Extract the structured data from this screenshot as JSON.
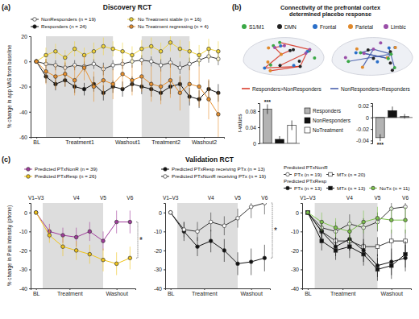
{
  "figure": {
    "panel_labels": [
      "(a)",
      "(b)",
      "(c)"
    ],
    "validation_title": "Validation RCT",
    "brain_title": "Connectivity of the prefrontal cortex determined placebo response",
    "regions": [
      {
        "label": "S1/M1",
        "color": "#3aa845"
      },
      {
        "label": "DMN",
        "color": "#222222"
      },
      {
        "label": "Frontal",
        "color": "#2a6fc9"
      },
      {
        "label": "Parietal",
        "color": "#e0892b"
      },
      {
        "label": "Limbic",
        "color": "#9a4fa8"
      }
    ],
    "contrasts": [
      {
        "label": "Responders>NonResponders",
        "color": "#d7301f"
      },
      {
        "label": "NonResponders>Responders",
        "color": "#3f57a8"
      }
    ]
  },
  "chart_data": [
    {
      "type": "line",
      "title": "Discovery RCT",
      "y_label": "% change in app VAS from baseline",
      "x": [
        0,
        1,
        2,
        3,
        4,
        5,
        6,
        7,
        8,
        9,
        10,
        11,
        12,
        13,
        14,
        15,
        16,
        17,
        18,
        19
      ],
      "xlim": [
        -0.6,
        19.6
      ],
      "xticks": [
        {
          "value": 0,
          "label": "BL"
        },
        {
          "value": 4.5,
          "label": "Treatment1"
        },
        {
          "value": 9.5,
          "label": "Washout1"
        },
        {
          "value": 13.5,
          "label": "Treatment2"
        },
        {
          "value": 17.5,
          "label": "Washout2"
        }
      ],
      "ylim": [
        -60,
        20
      ],
      "yticks": [
        -60,
        -40,
        -20,
        0,
        20
      ],
      "shading": [
        [
          1,
          8
        ],
        [
          11,
          16
        ]
      ],
      "legend": "top",
      "series": [
        {
          "name": "NonResponders (n = 19)",
          "color": "#ffffff",
          "marker": "circle",
          "values": [
            0,
            -2,
            -3,
            -5,
            -3,
            -4,
            -2,
            -6,
            -3,
            -2,
            0,
            1,
            0,
            -3,
            -1,
            -5,
            -2,
            1,
            4,
            2
          ],
          "errors": [
            0,
            4,
            4,
            4,
            4,
            4,
            4,
            5,
            4,
            4,
            5,
            4,
            4,
            5,
            4,
            5,
            5,
            5,
            5,
            5
          ]
        },
        {
          "name": "Responders (n = 24)",
          "color": "#111111",
          "marker": "circle",
          "values": [
            0,
            -12,
            -18,
            -15,
            -20,
            -22,
            -18,
            -25,
            -20,
            -22,
            -18,
            -20,
            -22,
            -25,
            -20,
            -18,
            -28,
            -30,
            -22,
            -25
          ],
          "errors": [
            0,
            5,
            5,
            5,
            5,
            5,
            6,
            6,
            5,
            6,
            6,
            6,
            6,
            6,
            6,
            6,
            7,
            7,
            7,
            7
          ]
        },
        {
          "name": "No Treatment stable (n = 16)",
          "color": "#f0d43a",
          "marker": "circle",
          "values": [
            0,
            5,
            8,
            3,
            10,
            5,
            8,
            12,
            10,
            8,
            5,
            10,
            12,
            8,
            15,
            10,
            8,
            5,
            10,
            8
          ],
          "errors": [
            0,
            6,
            6,
            6,
            6,
            6,
            7,
            7,
            6,
            7,
            7,
            7,
            7,
            7,
            7,
            7,
            8,
            8,
            8,
            8
          ]
        },
        {
          "name": "No Treatment regressing (n = 4)",
          "color": "#e8902e",
          "marker": "circle",
          "values": [
            0,
            -8,
            -12,
            -10,
            -15,
            -5,
            -20,
            -15,
            -18,
            -10,
            -15,
            -12,
            -18,
            -20,
            -15,
            -25,
            -18,
            -20,
            -30,
            -42
          ],
          "errors": [
            0,
            10,
            10,
            10,
            12,
            10,
            12,
            12,
            12,
            12,
            12,
            12,
            14,
            14,
            14,
            14,
            14,
            16,
            16,
            18
          ]
        }
      ]
    },
    {
      "type": "bar",
      "y_label": "r-values",
      "categories": [
        "Responders",
        "NonResponders",
        "NoTreatment"
      ],
      "values": [
        0.085,
        0.01,
        0.045
      ],
      "errors": [
        0.012,
        0.008,
        0.012
      ],
      "colors": [
        "#b3b3b3",
        "#111111",
        "#ffffff"
      ],
      "ylim": [
        0,
        0.1
      ],
      "yticks": [
        0,
        0.04,
        0.08
      ],
      "tick_labels": "y",
      "legend": "right",
      "annotations": [
        {
          "text": "***",
          "index": 0
        }
      ]
    },
    {
      "type": "bar",
      "categories": [
        "Responders",
        "NonResponders",
        "NoTreatment"
      ],
      "values": [
        -0.035,
        0.012,
        0.002
      ],
      "errors": [
        0.006,
        0.007,
        0.004
      ],
      "colors": [
        "#b3b3b3",
        "#111111",
        "#ffffff"
      ],
      "ylim": [
        -0.045,
        0.025
      ],
      "yticks": [
        -0.04,
        -0.02,
        0,
        0.02
      ],
      "tick_labels": "y",
      "annotations": [
        {
          "text": "***",
          "index": 0
        }
      ]
    },
    {
      "type": "line",
      "y_label": "% change in Pain intensity (phone)",
      "x": [
        0,
        1,
        2,
        3,
        4,
        5,
        6,
        7
      ],
      "xlim": [
        -0.4,
        7.4
      ],
      "xticks": [
        {
          "value": 0,
          "label": "BL"
        },
        {
          "value": 2.5,
          "label": "Treatment"
        },
        {
          "value": 6,
          "label": "Washout"
        }
      ],
      "x2ticks": [
        {
          "value": 0,
          "label": "V1–V3"
        },
        {
          "value": 3,
          "label": "V4"
        },
        {
          "value": 5,
          "label": "V5"
        },
        {
          "value": 7,
          "label": "V6"
        }
      ],
      "ylim": [
        -40,
        5
      ],
      "yticks": [
        -40,
        -30,
        -20,
        -10,
        0
      ],
      "shading": [
        [
          0.5,
          5
        ]
      ],
      "legend": "top",
      "annotations": [
        {
          "text": "*"
        }
      ],
      "series": [
        {
          "name": "Predicted PTxNonR (n = 39)",
          "color": "#a13c9c",
          "marker": "circle",
          "values": [
            0,
            -10,
            -12,
            -13,
            -10,
            -15,
            -5,
            -5
          ],
          "errors": [
            0,
            4,
            4,
            5,
            5,
            5,
            6,
            6
          ]
        },
        {
          "name": "Predicted PTxResp (n = 26)",
          "color": "#f0c419",
          "marker": "circle",
          "values": [
            0,
            -12,
            -18,
            -20,
            -22,
            -25,
            -27,
            -24
          ],
          "errors": [
            0,
            4,
            5,
            5,
            5,
            6,
            6,
            6
          ]
        }
      ]
    },
    {
      "type": "line",
      "x": [
        0,
        1,
        2,
        3,
        4,
        5,
        6,
        7
      ],
      "xlim": [
        -0.4,
        7.4
      ],
      "xticks": [
        {
          "value": 0,
          "label": "BL"
        },
        {
          "value": 2.5,
          "label": "Treatment"
        },
        {
          "value": 6,
          "label": "Washout"
        }
      ],
      "x2ticks": [
        {
          "value": 0,
          "label": "V1–V3"
        },
        {
          "value": 3,
          "label": "V4"
        },
        {
          "value": 5,
          "label": "V5"
        },
        {
          "value": 7,
          "label": "V6"
        }
      ],
      "ylim": [
        -40,
        5
      ],
      "yticks": [
        -40,
        -30,
        -20,
        -10,
        0
      ],
      "shading": [
        [
          0.5,
          5
        ]
      ],
      "legend": "top",
      "annotations": [
        {
          "text": "*"
        }
      ],
      "series": [
        {
          "name": "Predicted PTxResp receiving PTx (n = 13)",
          "color": "#111111",
          "marker": "circle",
          "values": [
            0,
            -10,
            -18,
            -15,
            -20,
            -27,
            -26,
            -24
          ],
          "errors": [
            0,
            5,
            5,
            6,
            6,
            6,
            7,
            7
          ]
        },
        {
          "name": "Predicted PTxNonR receiving PTx (n = 19)",
          "color": "#ffffff",
          "marker": "circle",
          "values": [
            0,
            -9,
            -10,
            -5,
            -7,
            -3,
            3,
            5
          ],
          "errors": [
            0,
            4,
            5,
            5,
            5,
            5,
            6,
            6
          ]
        }
      ]
    },
    {
      "type": "line",
      "x": [
        0,
        1,
        2,
        3,
        4,
        5,
        6,
        7
      ],
      "xlim": [
        -0.4,
        7.4
      ],
      "xticks": [
        {
          "value": 0,
          "label": "BL"
        },
        {
          "value": 2.5,
          "label": "Treatment"
        },
        {
          "value": 6,
          "label": "Washout"
        }
      ],
      "x2ticks": [
        {
          "value": 0,
          "label": "V1–V3"
        },
        {
          "value": 3,
          "label": "V4"
        },
        {
          "value": 5,
          "label": "V5"
        },
        {
          "value": 7,
          "label": "V6"
        }
      ],
      "ylim": [
        -40,
        5
      ],
      "yticks": [
        -40,
        -30,
        -20,
        -10,
        0
      ],
      "shading": [
        [
          0.5,
          5
        ]
      ],
      "legend": "top",
      "series": [
        {
          "name": "PTx (n = 19)",
          "group": "Predicted PTxNonR",
          "color": "#ffffff",
          "marker": "circle",
          "values": [
            0,
            -8,
            -10,
            -6,
            -8,
            -5,
            2,
            3
          ],
          "errors": [
            0,
            4,
            5,
            5,
            5,
            5,
            6,
            6
          ]
        },
        {
          "name": "MTx (n = 20)",
          "group": "Predicted PTxNonR",
          "color": "#ffffff",
          "marker": "square",
          "values": [
            0,
            -10,
            -15,
            -15,
            -18,
            -18,
            -15,
            -15
          ],
          "errors": [
            0,
            4,
            5,
            5,
            5,
            5,
            6,
            6
          ]
        },
        {
          "name": "PTx (n = 13)",
          "group": "Predicted PTxResp",
          "color": "#111111",
          "marker": "circle",
          "values": [
            0,
            -10,
            -18,
            -14,
            -20,
            -28,
            -26,
            -24
          ],
          "errors": [
            0,
            5,
            5,
            6,
            6,
            6,
            7,
            7
          ]
        },
        {
          "name": "MTx (n = 13)",
          "group": "Predicted PTxResp",
          "color": "#111111",
          "marker": "square",
          "values": [
            0,
            -15,
            -20,
            -18,
            -22,
            -30,
            -28,
            -22
          ],
          "errors": [
            0,
            5,
            5,
            6,
            6,
            6,
            7,
            7
          ]
        },
        {
          "name": "NoTx (n = 11)",
          "group": "Predicted PTxResp",
          "color": "#7cc24a",
          "marker": "circle",
          "values": [
            0,
            -5,
            -8,
            -10,
            -5,
            -3,
            -4,
            -4
          ],
          "errors": [
            0,
            5,
            5,
            6,
            6,
            6,
            7,
            7
          ]
        }
      ]
    }
  ]
}
